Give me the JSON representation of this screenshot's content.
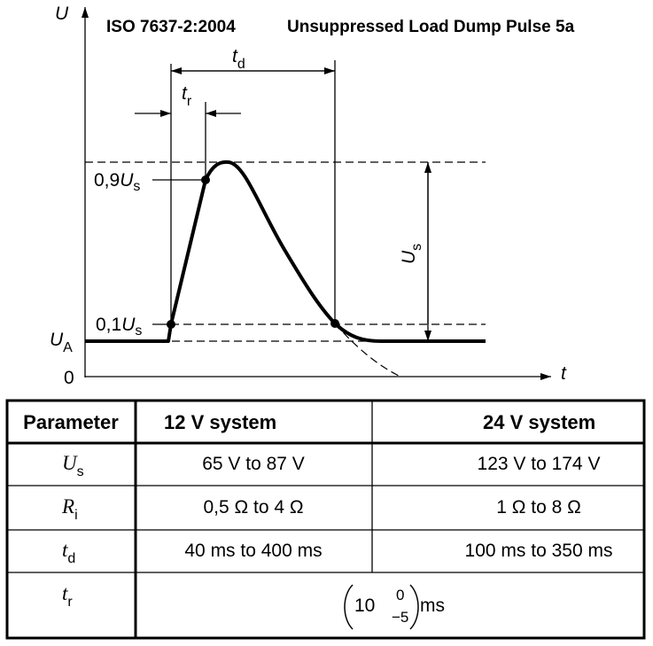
{
  "title": {
    "standard": "ISO 7637-2:2004",
    "name": "Unsuppressed Load Dump Pulse 5a"
  },
  "diagram": {
    "axes": {
      "y": "U",
      "x": "t",
      "origin": "0"
    },
    "td": {
      "symbol": "t",
      "sub": "d"
    },
    "tr": {
      "symbol": "t",
      "sub": "r"
    },
    "level_high": {
      "prefix": "0,9",
      "symbol": "U",
      "sub": "s"
    },
    "level_low": {
      "prefix": "0,1",
      "symbol": "U",
      "sub": "s"
    },
    "ua": {
      "symbol": "U",
      "sub": "A"
    },
    "us": {
      "symbol": "U",
      "sub": "s"
    }
  },
  "table": {
    "header": [
      "Parameter",
      "12 V system",
      "24 V system"
    ],
    "rows": [
      {
        "parameter": {
          "symbol": "U",
          "sub": "s"
        },
        "values": [
          "65 V to 87 V",
          "123 V to 174 V"
        ]
      },
      {
        "parameter": {
          "symbol": "R",
          "sub": "i"
        },
        "values": [
          "0,5 Ω to 4 Ω",
          "1 Ω to 8 Ω"
        ]
      },
      {
        "parameter": {
          "symbol": "t",
          "sub": "d"
        },
        "values": [
          "40 ms to 400 ms",
          "100 ms to 350 ms"
        ]
      },
      {
        "parameter": {
          "symbol": "t",
          "sub": "r"
        },
        "value": {
          "nominal": "10",
          "upper": "0",
          "lower": "−5",
          "unit": "ms"
        }
      }
    ]
  }
}
